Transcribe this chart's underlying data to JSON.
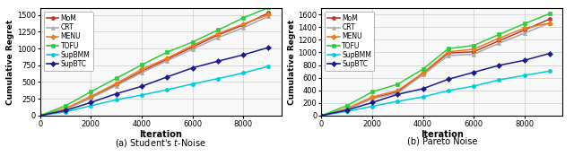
{
  "iterations": [
    0,
    1000,
    2000,
    3000,
    4000,
    5000,
    6000,
    7000,
    8000,
    9000
  ],
  "student": {
    "MoM": [
      0,
      95,
      270,
      460,
      660,
      840,
      1020,
      1200,
      1350,
      1530
    ],
    "CRT": [
      0,
      90,
      260,
      445,
      640,
      815,
      990,
      1160,
      1310,
      1480
    ],
    "MENU": [
      0,
      105,
      285,
      480,
      690,
      855,
      1045,
      1220,
      1365,
      1505
    ],
    "TOFU": [
      0,
      145,
      355,
      555,
      755,
      945,
      1095,
      1275,
      1455,
      1610
    ],
    "SupBMM": [
      0,
      55,
      145,
      235,
      305,
      385,
      470,
      550,
      635,
      735
    ],
    "SupBTC": [
      0,
      75,
      195,
      325,
      435,
      575,
      710,
      810,
      905,
      1015
    ]
  },
  "pareto": {
    "MoM": [
      0,
      100,
      275,
      375,
      665,
      990,
      1010,
      1185,
      1355,
      1530
    ],
    "CRT": [
      0,
      95,
      265,
      355,
      645,
      950,
      970,
      1145,
      1305,
      1465
    ],
    "MENU": [
      0,
      110,
      295,
      395,
      675,
      1010,
      1050,
      1225,
      1385,
      1465
    ],
    "TOFU": [
      0,
      155,
      375,
      495,
      735,
      1060,
      1110,
      1285,
      1455,
      1615
    ],
    "SupBMM": [
      0,
      65,
      145,
      225,
      295,
      395,
      465,
      565,
      635,
      705
    ],
    "SupBTC": [
      0,
      85,
      205,
      335,
      425,
      575,
      685,
      795,
      875,
      985
    ]
  },
  "colors": {
    "MoM": "#c0392b",
    "CRT": "#aaaaaa",
    "MENU": "#e67e22",
    "TOFU": "#2ecc40",
    "SupBMM": "#00ccdd",
    "SupBTC": "#1a1a8c"
  },
  "markers": {
    "MoM": "o",
    "CRT": "^",
    "MENU": "D",
    "TOFU": "s",
    "SupBMM": "o",
    "SupBTC": "D"
  },
  "markerfacecolors": {
    "MoM": "#c0392b",
    "CRT": "#aaaaaa",
    "MENU": "#e67e22",
    "TOFU": "#2ecc40",
    "SupBMM": "#00ccdd",
    "SupBTC": "#1a1a8c"
  },
  "ylim_student": [
    0,
    1600
  ],
  "ylim_pareto": [
    0,
    1700
  ],
  "yticks_student": [
    0,
    250,
    500,
    750,
    1000,
    1250,
    1500
  ],
  "yticks_pareto": [
    0,
    200,
    400,
    600,
    800,
    1000,
    1200,
    1400,
    1600
  ],
  "xlim": [
    0,
    9500
  ],
  "xticks": [
    0,
    2000,
    4000,
    6000,
    8000
  ],
  "xlabel": "Iteration",
  "ylabel": "Cumulative Regret",
  "caption_a": "(a) Student's $t$-Noise",
  "caption_b": "(b) Pareto Noise",
  "legend_order": [
    "MoM",
    "CRT",
    "MENU",
    "TOFU",
    "SupBMM",
    "SupBTC"
  ],
  "bg_color": "#f8f8f8",
  "grid_color": "#cccccc",
  "fig_width": 6.4,
  "fig_height": 1.84
}
